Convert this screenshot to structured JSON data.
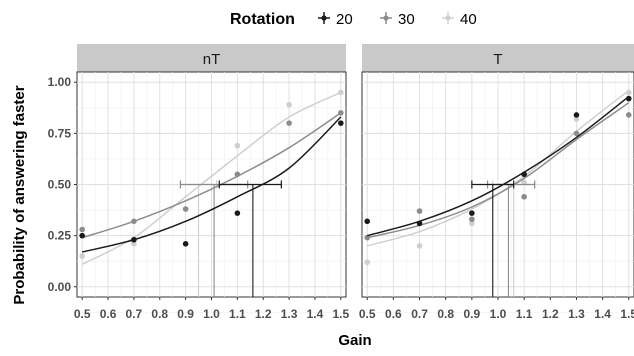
{
  "chart_data": {
    "type": "scatter",
    "ylabel": "Probability of answering faster",
    "xlabel": "Gain",
    "legend": {
      "title": "Rotation",
      "placement": "top",
      "entries": [
        "20",
        "30",
        "40"
      ]
    },
    "x_ticks": [
      "0.5",
      "0.6",
      "0.7",
      "0.8",
      "0.9",
      "1.0",
      "1.1",
      "1.2",
      "1.3",
      "1.4",
      "1.5"
    ],
    "y_ticks": [
      "0.00",
      "0.25",
      "0.50",
      "0.75",
      "1.00"
    ],
    "xlim": [
      0.48,
      1.52
    ],
    "ylim": [
      -0.05,
      1.05
    ],
    "grid": true,
    "colors": {
      "20": "#1a1a1a",
      "30": "#8c8c8c",
      "40": "#cfcfcf"
    },
    "panels": [
      {
        "title": "nT",
        "series": [
          {
            "name": "20",
            "points": [
              [
                0.5,
                0.25
              ],
              [
                0.7,
                0.23
              ],
              [
                0.9,
                0.21
              ],
              [
                1.1,
                0.36
              ],
              [
                1.5,
                0.8
              ]
            ],
            "curve": [
              [
                0.5,
                0.17
              ],
              [
                0.7,
                0.23
              ],
              [
                0.9,
                0.32
              ],
              [
                1.1,
                0.44
              ],
              [
                1.3,
                0.58
              ],
              [
                1.5,
                0.83
              ]
            ],
            "threshold": {
              "x": 1.16,
              "ci": [
                1.03,
                1.27
              ]
            }
          },
          {
            "name": "30",
            "points": [
              [
                0.5,
                0.28
              ],
              [
                0.7,
                0.32
              ],
              [
                0.9,
                0.38
              ],
              [
                1.1,
                0.55
              ],
              [
                1.3,
                0.8
              ],
              [
                1.5,
                0.85
              ]
            ],
            "curve": [
              [
                0.5,
                0.24
              ],
              [
                0.7,
                0.32
              ],
              [
                0.9,
                0.42
              ],
              [
                1.1,
                0.54
              ],
              [
                1.3,
                0.68
              ],
              [
                1.5,
                0.85
              ]
            ],
            "threshold": {
              "x": 1.01,
              "ci": [
                0.88,
                1.14
              ]
            }
          },
          {
            "name": "40",
            "points": [
              [
                0.5,
                0.15
              ],
              [
                0.7,
                0.21
              ],
              [
                0.9,
                0.38
              ],
              [
                1.1,
                0.69
              ],
              [
                1.3,
                0.89
              ],
              [
                1.5,
                0.95
              ]
            ],
            "curve": [
              [
                0.5,
                0.11
              ],
              [
                0.7,
                0.24
              ],
              [
                0.9,
                0.44
              ],
              [
                1.1,
                0.64
              ],
              [
                1.3,
                0.83
              ],
              [
                1.5,
                0.95
              ]
            ],
            "threshold": {
              "x": 0.95,
              "ci": [
                0.88,
                1.02
              ]
            }
          }
        ]
      },
      {
        "title": "T",
        "series": [
          {
            "name": "20",
            "points": [
              [
                0.5,
                0.32
              ],
              [
                0.7,
                0.31
              ],
              [
                0.9,
                0.36
              ],
              [
                1.1,
                0.55
              ],
              [
                1.3,
                0.84
              ],
              [
                1.5,
                0.92
              ]
            ],
            "curve": [
              [
                0.5,
                0.25
              ],
              [
                0.7,
                0.32
              ],
              [
                0.9,
                0.42
              ],
              [
                1.1,
                0.56
              ],
              [
                1.3,
                0.73
              ],
              [
                1.5,
                0.93
              ]
            ],
            "threshold": {
              "x": 0.98,
              "ci": [
                0.9,
                1.06
              ]
            }
          },
          {
            "name": "30",
            "points": [
              [
                0.5,
                0.24
              ],
              [
                0.7,
                0.37
              ],
              [
                0.9,
                0.33
              ],
              [
                1.1,
                0.44
              ],
              [
                1.3,
                0.75
              ],
              [
                1.5,
                0.84
              ]
            ],
            "curve": [
              [
                0.5,
                0.24
              ],
              [
                0.7,
                0.3
              ],
              [
                0.9,
                0.39
              ],
              [
                1.1,
                0.53
              ],
              [
                1.3,
                0.72
              ],
              [
                1.5,
                0.9
              ]
            ],
            "threshold": {
              "x": 1.04,
              "ci": [
                0.96,
                1.14
              ]
            }
          },
          {
            "name": "40",
            "points": [
              [
                0.5,
                0.12
              ],
              [
                0.7,
                0.2
              ],
              [
                0.9,
                0.31
              ],
              [
                1.1,
                0.51
              ],
              [
                1.3,
                0.82
              ],
              [
                1.5,
                0.95
              ]
            ],
            "curve": [
              [
                0.5,
                0.2
              ],
              [
                0.7,
                0.27
              ],
              [
                0.9,
                0.38
              ],
              [
                1.1,
                0.54
              ],
              [
                1.3,
                0.76
              ],
              [
                1.5,
                0.96
              ]
            ],
            "threshold": {
              "x": 1.06,
              "ci": [
                0.98,
                1.14
              ]
            }
          }
        ]
      }
    ]
  }
}
